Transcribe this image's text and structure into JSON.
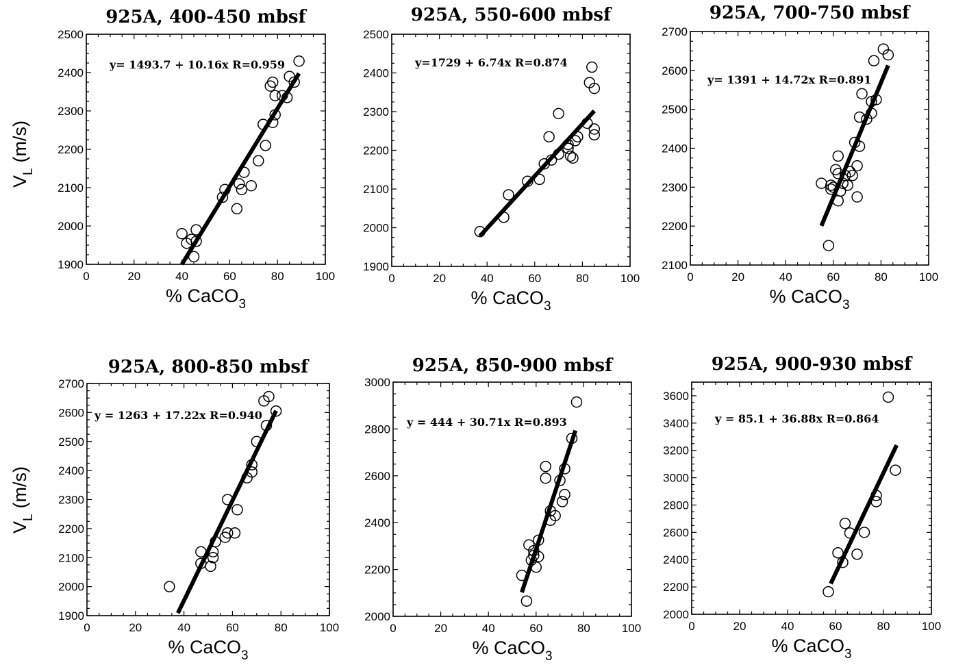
{
  "figure": {
    "y_axis_label_main": "V",
    "y_axis_label_sub": "L",
    "y_axis_label_unit": "(m/s)"
  },
  "chart_data": [
    {
      "type": "scatter",
      "title": "925A, 400-450 mbsf",
      "xlabel_main": "% CaCO",
      "xlabel_sub": "3",
      "xlim": [
        0,
        100
      ],
      "ylim": [
        1900,
        2500
      ],
      "xticks": [
        0,
        20,
        40,
        60,
        80,
        100
      ],
      "yticks": [
        1900,
        2000,
        2100,
        2200,
        2300,
        2400,
        2500
      ],
      "equation": "y= 1493.7 + 10.16x R=0.959",
      "fit": {
        "intercept": 1493.7,
        "slope": 10.16,
        "x_range": [
          40,
          89
        ]
      },
      "points": [
        [
          40,
          1980
        ],
        [
          42,
          1955
        ],
        [
          44,
          1965
        ],
        [
          45,
          1920
        ],
        [
          46,
          1990
        ],
        [
          46,
          1960
        ],
        [
          57,
          2075
        ],
        [
          58,
          2095
        ],
        [
          63,
          2045
        ],
        [
          64,
          2110
        ],
        [
          65,
          2095
        ],
        [
          66,
          2140
        ],
        [
          69,
          2105
        ],
        [
          72,
          2170
        ],
        [
          74,
          2265
        ],
        [
          75,
          2210
        ],
        [
          77,
          2365
        ],
        [
          78,
          2375
        ],
        [
          78,
          2270
        ],
        [
          79,
          2290
        ],
        [
          79,
          2340
        ],
        [
          82,
          2340
        ],
        [
          84,
          2335
        ],
        [
          85,
          2390
        ],
        [
          87,
          2375
        ],
        [
          89,
          2430
        ]
      ]
    },
    {
      "type": "scatter",
      "title": "925A, 550-600 mbsf",
      "xlabel_main": "% CaCO",
      "xlabel_sub": "3",
      "xlim": [
        0,
        100
      ],
      "ylim": [
        1900,
        2500
      ],
      "xticks": [
        0,
        20,
        40,
        60,
        80,
        100
      ],
      "yticks": [
        1900,
        2000,
        2100,
        2200,
        2300,
        2400,
        2500
      ],
      "equation": "y=1729 + 6.74x R=0.874",
      "fit": {
        "intercept": 1729,
        "slope": 6.74,
        "x_range": [
          37,
          85
        ]
      },
      "points": [
        [
          37,
          1990
        ],
        [
          47,
          2027
        ],
        [
          49,
          2085
        ],
        [
          57,
          2120
        ],
        [
          62,
          2125
        ],
        [
          64,
          2165
        ],
        [
          66,
          2235
        ],
        [
          67,
          2175
        ],
        [
          70,
          2295
        ],
        [
          70,
          2190
        ],
        [
          74,
          2205
        ],
        [
          74,
          2215
        ],
        [
          75,
          2185
        ],
        [
          76,
          2180
        ],
        [
          77,
          2225
        ],
        [
          78,
          2235
        ],
        [
          82,
          2270
        ],
        [
          83,
          2375
        ],
        [
          84,
          2415
        ],
        [
          85,
          2360
        ],
        [
          85,
          2255
        ],
        [
          85,
          2240
        ]
      ]
    },
    {
      "type": "scatter",
      "title": "925A, 700-750 mbsf",
      "xlabel_main": "% CaCO",
      "xlabel_sub": "3",
      "xlim": [
        0,
        100
      ],
      "ylim": [
        2100,
        2700
      ],
      "xticks": [
        0,
        20,
        40,
        60,
        80,
        100
      ],
      "yticks": [
        2100,
        2200,
        2300,
        2400,
        2500,
        2600,
        2700
      ],
      "equation": "y= 1391 + 14.72x R=0.891",
      "fit": {
        "intercept": 1391,
        "slope": 14.72,
        "x_range": [
          55,
          83
        ]
      },
      "points": [
        [
          55,
          2310
        ],
        [
          58,
          2150
        ],
        [
          59,
          2305
        ],
        [
          59,
          2295
        ],
        [
          60,
          2300
        ],
        [
          61,
          2345
        ],
        [
          62,
          2335
        ],
        [
          62,
          2265
        ],
        [
          62,
          2380
        ],
        [
          63,
          2290
        ],
        [
          64,
          2310
        ],
        [
          65,
          2330
        ],
        [
          66,
          2305
        ],
        [
          67,
          2340
        ],
        [
          68,
          2330
        ],
        [
          69,
          2415
        ],
        [
          70,
          2355
        ],
        [
          70,
          2275
        ],
        [
          71,
          2480
        ],
        [
          71,
          2405
        ],
        [
          72,
          2540
        ],
        [
          74,
          2475
        ],
        [
          76,
          2520
        ],
        [
          76,
          2490
        ],
        [
          77,
          2625
        ],
        [
          78,
          2525
        ],
        [
          81,
          2655
        ],
        [
          83,
          2640
        ]
      ]
    },
    {
      "type": "scatter",
      "title": "925A, 800-850 mbsf",
      "xlabel_main": "% CaCO",
      "xlabel_sub": "3",
      "xlim": [
        0,
        100
      ],
      "ylim": [
        1900,
        2700
      ],
      "xticks": [
        0,
        20,
        40,
        60,
        80,
        100
      ],
      "yticks": [
        1900,
        2000,
        2100,
        2200,
        2300,
        2400,
        2500,
        2600,
        2700
      ],
      "equation": "y = 1263 + 17.22x R=0.940",
      "fit": {
        "intercept": 1263,
        "slope": 17.22,
        "x_range": [
          37.5,
          78
        ]
      },
      "points": [
        [
          34,
          2000
        ],
        [
          47,
          2120
        ],
        [
          47,
          2080
        ],
        [
          51,
          2070
        ],
        [
          52,
          2100
        ],
        [
          52,
          2120
        ],
        [
          53,
          2155
        ],
        [
          57,
          2170
        ],
        [
          58,
          2185
        ],
        [
          58,
          2300
        ],
        [
          61,
          2185
        ],
        [
          62,
          2265
        ],
        [
          66,
          2375
        ],
        [
          68,
          2420
        ],
        [
          68,
          2395
        ],
        [
          70,
          2500
        ],
        [
          73,
          2640
        ],
        [
          74,
          2555
        ],
        [
          75,
          2655
        ],
        [
          78,
          2605
        ]
      ]
    },
    {
      "type": "scatter",
      "title": "925A, 850-900 mbsf",
      "xlabel_main": "% CaCO",
      "xlabel_sub": "3",
      "xlim": [
        0,
        100
      ],
      "ylim": [
        2000,
        3000
      ],
      "xticks": [
        0,
        20,
        40,
        60,
        80,
        100
      ],
      "yticks": [
        2000,
        2200,
        2400,
        2600,
        2800,
        3000
      ],
      "equation": "y = 444 + 30.71x R=0.893",
      "fit": {
        "intercept": 444,
        "slope": 30.71,
        "x_range": [
          54,
          76.5
        ]
      },
      "points": [
        [
          54,
          2175
        ],
        [
          56,
          2065
        ],
        [
          57,
          2305
        ],
        [
          58,
          2240
        ],
        [
          59,
          2280
        ],
        [
          59,
          2260
        ],
        [
          60,
          2210
        ],
        [
          61,
          2325
        ],
        [
          61,
          2255
        ],
        [
          64,
          2640
        ],
        [
          64,
          2590
        ],
        [
          66,
          2450
        ],
        [
          66,
          2410
        ],
        [
          68,
          2430
        ],
        [
          70,
          2580
        ],
        [
          71,
          2490
        ],
        [
          72,
          2630
        ],
        [
          72,
          2520
        ],
        [
          75,
          2760
        ],
        [
          77,
          2915
        ]
      ]
    },
    {
      "type": "scatter",
      "title": "925A, 900-930 mbsf",
      "xlabel_main": "% CaCO",
      "xlabel_sub": "3",
      "xlim": [
        0,
        100
      ],
      "ylim": [
        2000,
        3700
      ],
      "xticks": [
        0,
        20,
        40,
        60,
        80,
        100
      ],
      "yticks": [
        2000,
        2200,
        2400,
        2600,
        2800,
        3000,
        3200,
        3400,
        3600
      ],
      "equation": "y = 85.1 + 36.88x R=0.864",
      "fit": {
        "intercept": 85.1,
        "slope": 36.88,
        "x_range": [
          58,
          85.5
        ]
      },
      "points": [
        [
          57,
          2165
        ],
        [
          61,
          2450
        ],
        [
          63,
          2380
        ],
        [
          64,
          2665
        ],
        [
          66,
          2595
        ],
        [
          69,
          2440
        ],
        [
          72,
          2600
        ],
        [
          77,
          2870
        ],
        [
          77,
          2825
        ],
        [
          82,
          3590
        ],
        [
          85,
          3055
        ]
      ]
    }
  ]
}
